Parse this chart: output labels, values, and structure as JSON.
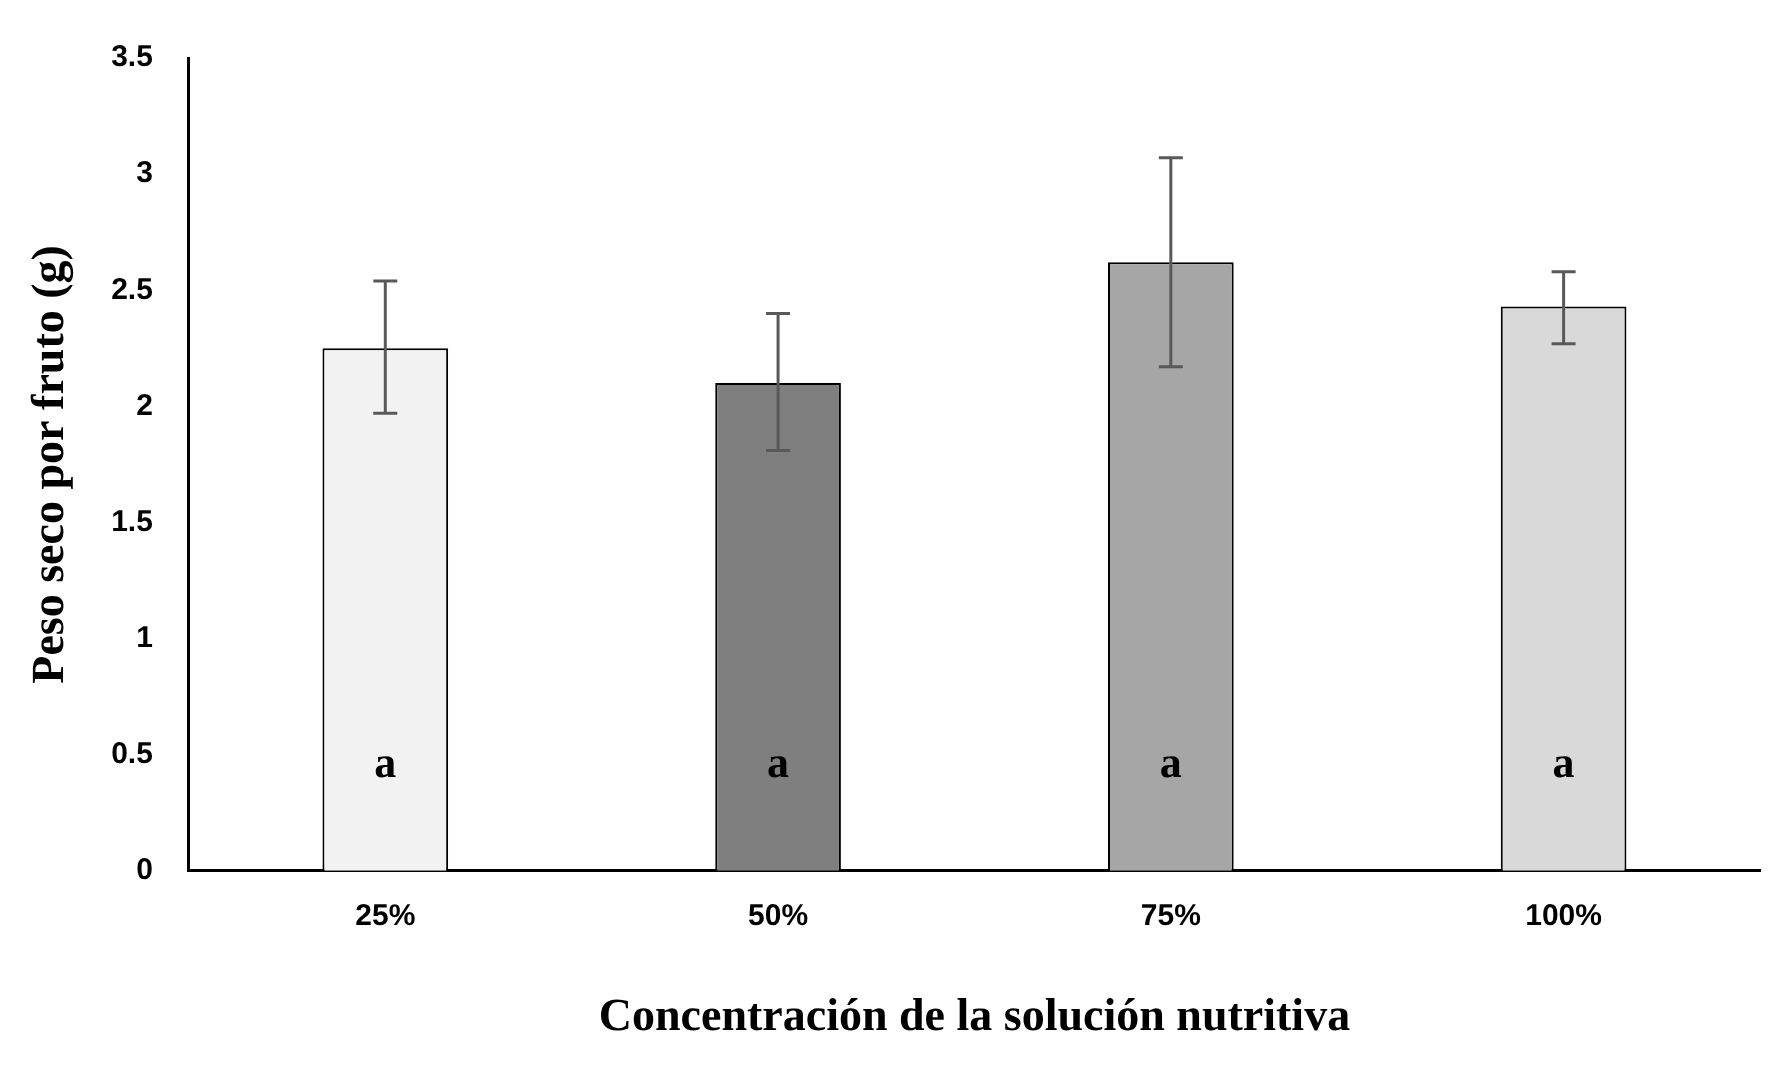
{
  "chart_data": {
    "type": "bar",
    "xlabel": "Concentración de la solución nutritiva",
    "ylabel": "Peso seco por fruto (g)",
    "categories": [
      "25%",
      "50%",
      "75%",
      "100%"
    ],
    "values": [
      2.25,
      2.1,
      2.62,
      2.43
    ],
    "colors": [
      "#f2f2f2",
      "#7f7f7f",
      "#a6a6a6",
      "#d9d9d9"
    ],
    "errors": [
      [
        1.97,
        2.54
      ],
      [
        1.81,
        2.4
      ],
      [
        2.17,
        3.07
      ],
      [
        2.27,
        2.58
      ]
    ],
    "ylim": [
      0,
      3.5
    ],
    "yticks": [
      0,
      0.5,
      1,
      1.5,
      2,
      2.5,
      3,
      3.5
    ],
    "grid": false,
    "legend": false,
    "annotations": [
      "a",
      "a",
      "a",
      "a"
    ]
  }
}
